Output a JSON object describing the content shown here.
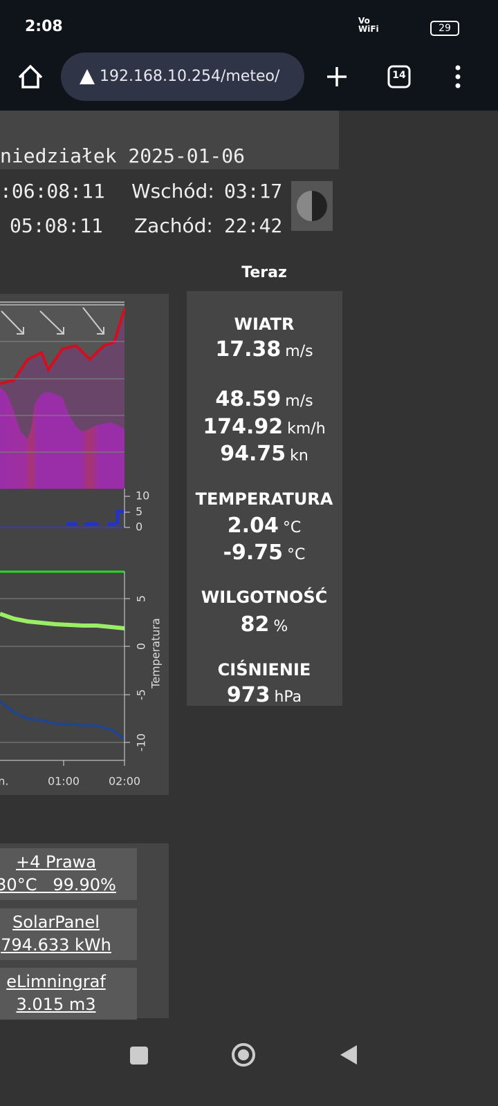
{
  "status_bar": {
    "time": "2:08",
    "network_top": "Vo",
    "network_bottom": "WiFi",
    "battery": "29"
  },
  "browser": {
    "url": "192.168.10.254/meteo/",
    "tab_count": "14"
  },
  "header": {
    "date": "niedziałek 2025-01-06",
    "rows": [
      [
        ":06:08:11",
        "Wschód:",
        "03:17"
      ],
      [
        "05:08:11",
        "Zachód:",
        "22:42"
      ]
    ]
  },
  "current": {
    "title": "Teraz",
    "groups": [
      {
        "label": "WIATR",
        "rows": [
          [
            "17.38",
            "m/s"
          ]
        ]
      },
      {
        "rows": [
          [
            "48.59",
            "m/s"
          ],
          [
            "174.92",
            "km/h"
          ],
          [
            "94.75",
            "kn"
          ]
        ]
      },
      {
        "label": "TEMPERATURA",
        "rows": [
          [
            "2.04",
            "°C"
          ],
          [
            "-9.75",
            "°C"
          ]
        ]
      },
      {
        "label": "WILGOTNOŚĆ",
        "rows": [
          [
            "82",
            "%"
          ]
        ]
      },
      {
        "label": "CIŚNIENIE",
        "rows": [
          [
            "973",
            "hPa"
          ]
        ]
      }
    ]
  },
  "charts": {
    "rain_ticks": [
      "10",
      "5",
      "0"
    ],
    "temp_ticks": [
      "5",
      "0",
      "-5",
      "-10"
    ],
    "temp_axis_title": "Temperatura",
    "x_labels": [
      "on.",
      "01:00",
      "02:00"
    ]
  },
  "links": [
    [
      "+4 Prawa",
      "30°C   99.90%"
    ],
    [
      "SolarPanel",
      "794.633 kWh"
    ],
    [
      "eLimningraf",
      "3.015 m3"
    ]
  ]
}
